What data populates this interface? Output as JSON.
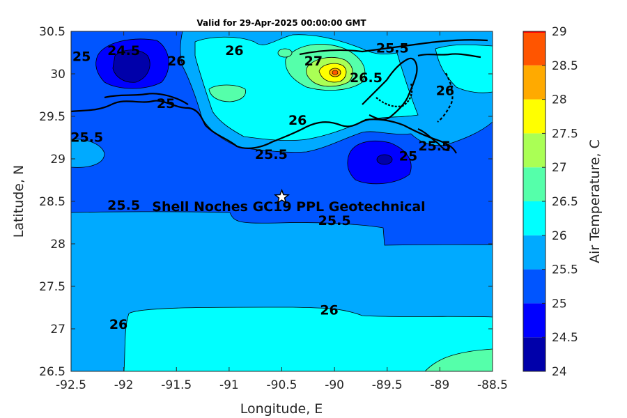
{
  "chart_data": {
    "type": "contour-map",
    "title": "Valid for 29-Apr-2025 00:00:00 GMT",
    "xlabel": "Longitude, E",
    "ylabel": "Latitude, N",
    "xlim": [
      -92.5,
      -88.5
    ],
    "ylim": [
      26.5,
      30.5
    ],
    "xticks": [
      "-92.5",
      "-92",
      "-91.5",
      "-91",
      "-90.5",
      "-90",
      "-89.5",
      "-89",
      "-88.5"
    ],
    "yticks": [
      "30.5",
      "30",
      "29.5",
      "29",
      "28.5",
      "28",
      "27.5",
      "27",
      "26.5"
    ],
    "colorbar": {
      "label": "Air Temperature, C",
      "ticks": [
        "29",
        "28.5",
        "28",
        "27.5",
        "27",
        "26.5",
        "26",
        "25.5",
        "25",
        "24.5",
        "24"
      ],
      "levels": [
        {
          "min": 24.0,
          "max": 24.5,
          "color": "#0000aa"
        },
        {
          "min": 24.5,
          "max": 25.0,
          "color": "#0000ff"
        },
        {
          "min": 25.0,
          "max": 25.5,
          "color": "#0055ff"
        },
        {
          "min": 25.5,
          "max": 26.0,
          "color": "#00aaff"
        },
        {
          "min": 26.0,
          "max": 26.5,
          "color": "#00ffff"
        },
        {
          "min": 26.5,
          "max": 27.0,
          "color": "#55ffaa"
        },
        {
          "min": 27.0,
          "max": 27.5,
          "color": "#aaff55"
        },
        {
          "min": 27.5,
          "max": 28.0,
          "color": "#ffff00"
        },
        {
          "min": 28.0,
          "max": 28.5,
          "color": "#ffaa00"
        },
        {
          "min": 28.5,
          "max": 29.0,
          "color": "#ff5500"
        },
        {
          "min": 29.0,
          "max": 29.5,
          "color": "#ff0000"
        }
      ]
    },
    "contour_labels": [
      {
        "text": "25",
        "lon": -92.4,
        "lat": 30.15
      },
      {
        "text": "24.5",
        "lon": -92.0,
        "lat": 30.22
      },
      {
        "text": "26",
        "lon": -91.5,
        "lat": 30.1
      },
      {
        "text": "26",
        "lon": -90.95,
        "lat": 30.22
      },
      {
        "text": "27",
        "lon": -90.2,
        "lat": 30.1
      },
      {
        "text": "25.5",
        "lon": -89.45,
        "lat": 30.25
      },
      {
        "text": "26.5",
        "lon": -89.7,
        "lat": 29.9
      },
      {
        "text": "26",
        "lon": -88.95,
        "lat": 29.75
      },
      {
        "text": "25",
        "lon": -91.6,
        "lat": 29.6
      },
      {
        "text": "26",
        "lon": -90.35,
        "lat": 29.4
      },
      {
        "text": "25.5",
        "lon": -92.35,
        "lat": 29.2
      },
      {
        "text": "25.5",
        "lon": -90.6,
        "lat": 29.0
      },
      {
        "text": "25.5",
        "lon": -89.05,
        "lat": 29.1
      },
      {
        "text": "25",
        "lon": -89.3,
        "lat": 28.98
      },
      {
        "text": "25.5",
        "lon": -92.0,
        "lat": 28.4
      },
      {
        "text": "25.5",
        "lon": -90.0,
        "lat": 28.22
      },
      {
        "text": "26",
        "lon": -90.05,
        "lat": 27.17
      },
      {
        "text": "26",
        "lon": -92.05,
        "lat": 27.0
      }
    ],
    "site": {
      "name": "Shell Noches   GC19 PPL  Geotechnical",
      "lon": -90.5,
      "lat": 28.55
    }
  }
}
